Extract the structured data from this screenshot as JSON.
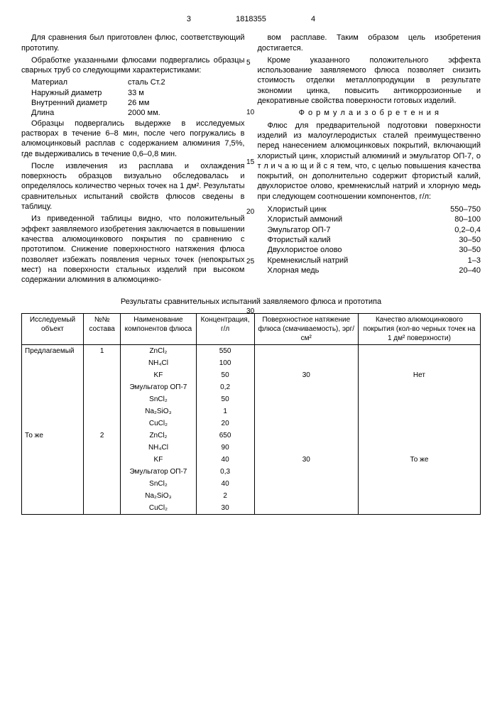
{
  "header": {
    "page_left": "3",
    "patent_no": "1818355",
    "page_right": "4"
  },
  "left": {
    "p1": "Для сравнения был приготовлен флюс, соответствующий прототипу.",
    "p2": "Обработке указанными флюсами подвергались образцы сварных труб со следующими характеристиками:",
    "specs": [
      {
        "label": "Материал",
        "val": "сталь Ст.2"
      },
      {
        "label": "Наружный диаметр",
        "val": "33 м"
      },
      {
        "label": "Внутренний диаметр",
        "val": "26 мм"
      },
      {
        "label": "Длина",
        "val": "2000 мм."
      }
    ],
    "p3": "Образцы подвергались выдержке в исследуемых растворах в течение 6–8 мин, после чего погружались в алюмоцинковый расплав с содержанием алюминия 7,5%, где выдерживались в течение 0,6–0,8 мин.",
    "p4": "После извлечения из расплава и охлаждения поверхность образцов визуально обследовалась и определялось количество черных точек на 1 дм². Результаты сравнительных испытаний свойств флюсов сведены в таблицу.",
    "p5": "Из приведенной таблицы видно, что положительный эффект заявляемого изобретения заключается в повышении качества алюмоцинкового покрытия по сравнению с прототипом. Снижение поверхностного натяжения флюса позволяет избежать появления черных точек (непокрытых мест) на поверхности стальных изделий при высоком содержании алюминия в алюмоцинко-"
  },
  "right": {
    "p1": "вом расплаве. Таким образом цель изобретения достигается.",
    "p2": "Кроме указанного положительного эффекта использование заявляемого флюса позволяет снизить стоимость отделки металлопродукции в результате экономии цинка, повысить антикоррозионные и декоративные свойства поверхности готовых изделий.",
    "formula_title": "Ф о р м у л а  и з о б р е т е н и я",
    "formula": "Флюс для предварительной подготовки поверхности изделий из малоуглеродистых сталей преимущественно перед нанесением алюмоцинковых покрытий, включающий хлористый цинк, хлористый алюминий и эмульгатор ОП-7, о т л и ч а ю щ и й с я тем, что, с целью повышения качества покрытий, он дополнительно содержит фтористый калий, двухлористое олово, кремнекислый натрий и хлорную медь при следующем соотношении компонентов, г/л:",
    "components": [
      {
        "name": "Хлористый цинк",
        "val": "550–750"
      },
      {
        "name": "Хлористый аммоний",
        "val": "80–100"
      },
      {
        "name": "Эмульгатор ОП-7",
        "val": "0,2–0,4"
      },
      {
        "name": "Фтористый калий",
        "val": "30–50"
      },
      {
        "name": "Двухлористое олово",
        "val": "30–50"
      },
      {
        "name": "Кремнекислый натрий",
        "val": "1–3"
      },
      {
        "name": "Хлорная медь",
        "val": "20–40"
      }
    ]
  },
  "markers": [
    "5",
    "10",
    "15",
    "20",
    "25",
    "30"
  ],
  "table": {
    "title": "Результаты сравнительных испытаний заявляемого флюса и прототипа",
    "headers": [
      "Исследуемый объект",
      "№№ состава",
      "Наименование компонентов флюса",
      "Концентрация, г/л",
      "Поверхностное натяжение флюса (смачиваемость), эрг/см²",
      "Качество алюмоцинкового покрытия (кол-во черных точек на 1 дм² поверхности)"
    ],
    "rows": [
      {
        "obj": "Предлагаемый",
        "num": "1",
        "comp": "ZnCl₂",
        "conc": "550",
        "tension": "",
        "quality": ""
      },
      {
        "obj": "",
        "num": "",
        "comp": "NH₄Cl",
        "conc": "100",
        "tension": "",
        "quality": ""
      },
      {
        "obj": "",
        "num": "",
        "comp": "KF",
        "conc": "50",
        "tension": "30",
        "quality": "Нет"
      },
      {
        "obj": "",
        "num": "",
        "comp": "Эмульгатор ОП-7",
        "conc": "0,2",
        "tension": "",
        "quality": ""
      },
      {
        "obj": "",
        "num": "",
        "comp": "SnCl₂",
        "conc": "50",
        "tension": "",
        "quality": ""
      },
      {
        "obj": "",
        "num": "",
        "comp": "Na₂SiO₃",
        "conc": "1",
        "tension": "",
        "quality": ""
      },
      {
        "obj": "",
        "num": "",
        "comp": "CuCl₂",
        "conc": "20",
        "tension": "",
        "quality": ""
      },
      {
        "obj": "То же",
        "num": "2",
        "comp": "ZnCl₂",
        "conc": "650",
        "tension": "",
        "quality": ""
      },
      {
        "obj": "",
        "num": "",
        "comp": "NH₄Cl",
        "conc": "90",
        "tension": "",
        "quality": ""
      },
      {
        "obj": "",
        "num": "",
        "comp": "KF",
        "conc": "40",
        "tension": "30",
        "quality": "То же"
      },
      {
        "obj": "",
        "num": "",
        "comp": "Эмульгатор ОП-7",
        "conc": "0,3",
        "tension": "",
        "quality": ""
      },
      {
        "obj": "",
        "num": "",
        "comp": "SnCl₂",
        "conc": "40",
        "tension": "",
        "quality": ""
      },
      {
        "obj": "",
        "num": "",
        "comp": "Na₂SiO₃",
        "conc": "2",
        "tension": "",
        "quality": ""
      },
      {
        "obj": "",
        "num": "",
        "comp": "CuCl₂",
        "conc": "30",
        "tension": "",
        "quality": ""
      }
    ]
  }
}
